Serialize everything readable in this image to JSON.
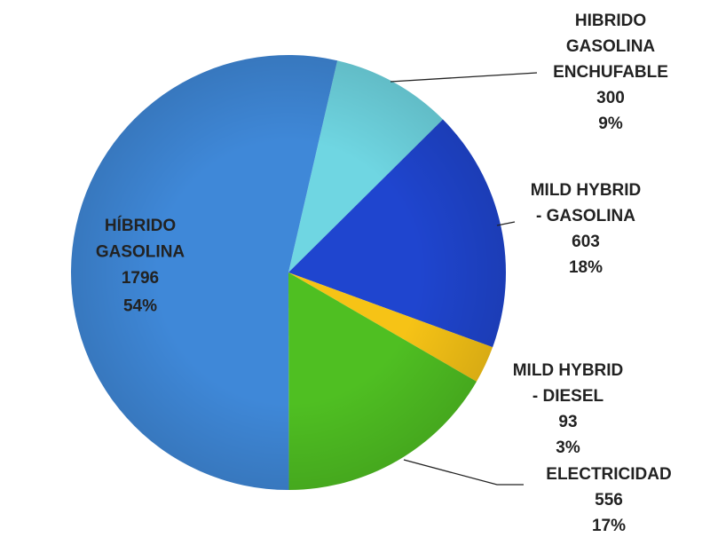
{
  "chart_data": {
    "type": "pie",
    "categories": [
      [
        "HIBRIDO",
        "GASOLINA",
        "ENCHUFABLE"
      ],
      [
        "MILD HYBRID",
        "- GASOLINA"
      ],
      [
        "MILD HYBRID",
        "- DIESEL"
      ],
      [
        "ELECTRICIDAD"
      ],
      [
        "HÍBRIDO",
        "GASOLINA"
      ]
    ],
    "values": [
      300,
      603,
      93,
      556,
      1796
    ],
    "percent_labels": [
      "9%",
      "18%",
      "3%",
      "17%",
      "54%"
    ],
    "colors": [
      "#6fd6e2",
      "#1f45cf",
      "#f6c316",
      "#4fbf22",
      "#3f88d8"
    ]
  }
}
